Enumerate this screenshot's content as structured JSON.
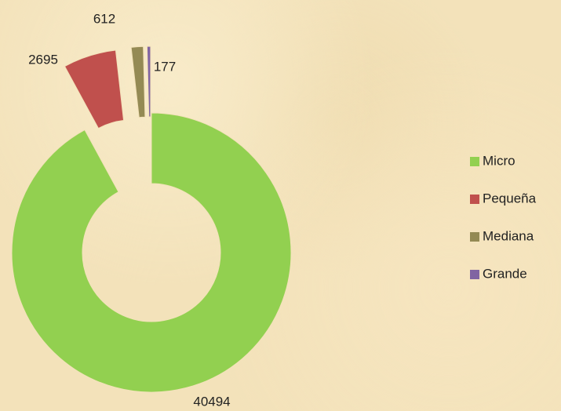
{
  "chart_data": {
    "type": "donut",
    "categories": [
      "Micro",
      "Pequeña",
      "Mediana",
      "Grande"
    ],
    "values": [
      40494,
      2695,
      612,
      177
    ],
    "colors": [
      "#92d050",
      "#c0504d",
      "#948a54",
      "#8064a2"
    ],
    "legend": "right"
  }
}
